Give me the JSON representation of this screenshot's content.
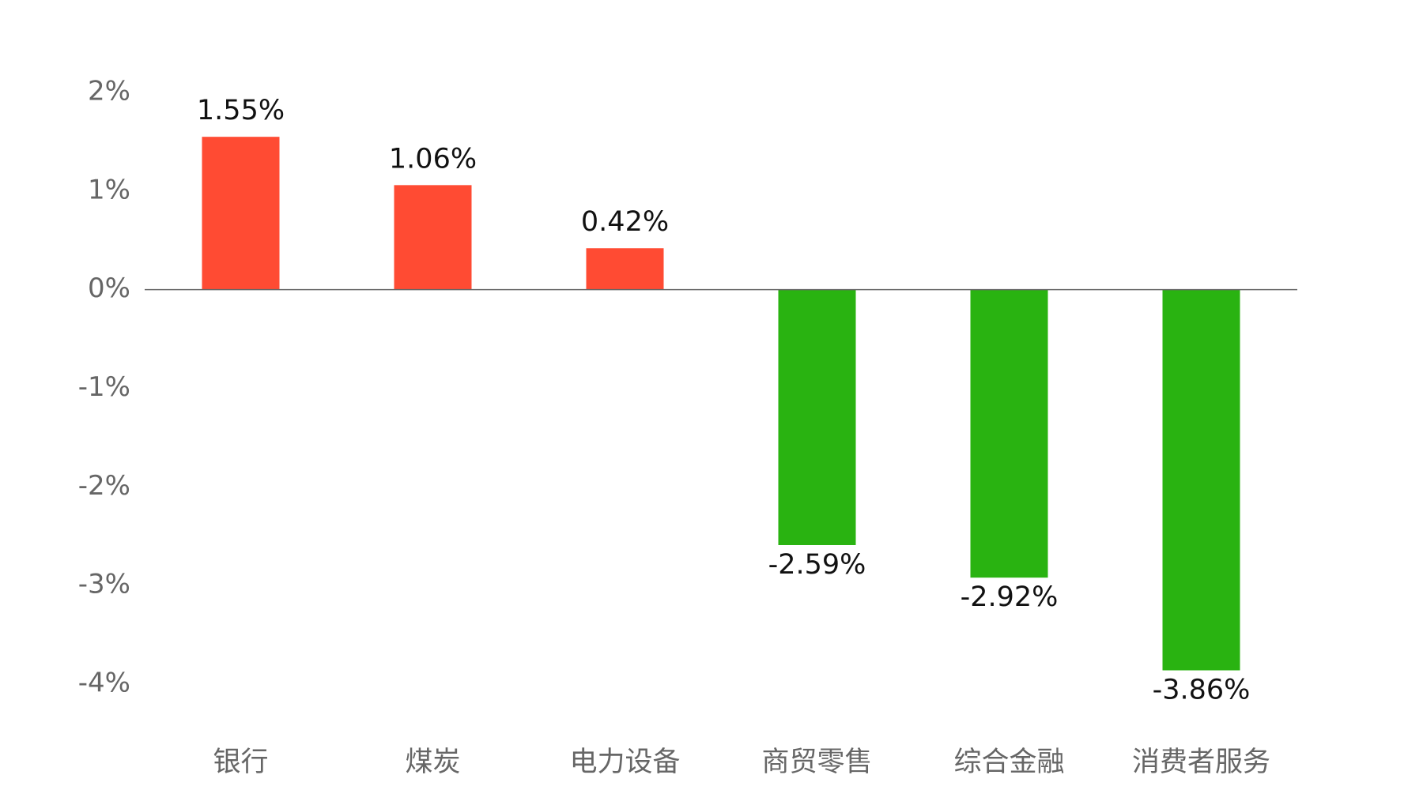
{
  "chart_data": {
    "type": "bar",
    "categories": [
      "银行",
      "煤炭",
      "电力设备",
      "商贸零售",
      "综合金融",
      "消费者服务"
    ],
    "values": [
      1.55,
      1.06,
      0.42,
      -2.59,
      -2.92,
      -3.86
    ],
    "value_labels": [
      "1.55%",
      "1.06%",
      "0.42%",
      "-2.59%",
      "-2.92%",
      "-3.86%"
    ],
    "colors": [
      "#ff4b33",
      "#ff4b33",
      "#ff4b33",
      "#29b311",
      "#29b311",
      "#29b311"
    ],
    "ylim": [
      -4,
      2
    ],
    "yticks": [
      {
        "value": 2,
        "label": "2%"
      },
      {
        "value": 1,
        "label": "1%"
      },
      {
        "value": 0,
        "label": "0%"
      },
      {
        "value": -1,
        "label": "-1%"
      },
      {
        "value": -2,
        "label": "-2%"
      },
      {
        "value": -3,
        "label": "-3%"
      },
      {
        "value": -4,
        "label": "-4%"
      }
    ],
    "grid": false
  }
}
